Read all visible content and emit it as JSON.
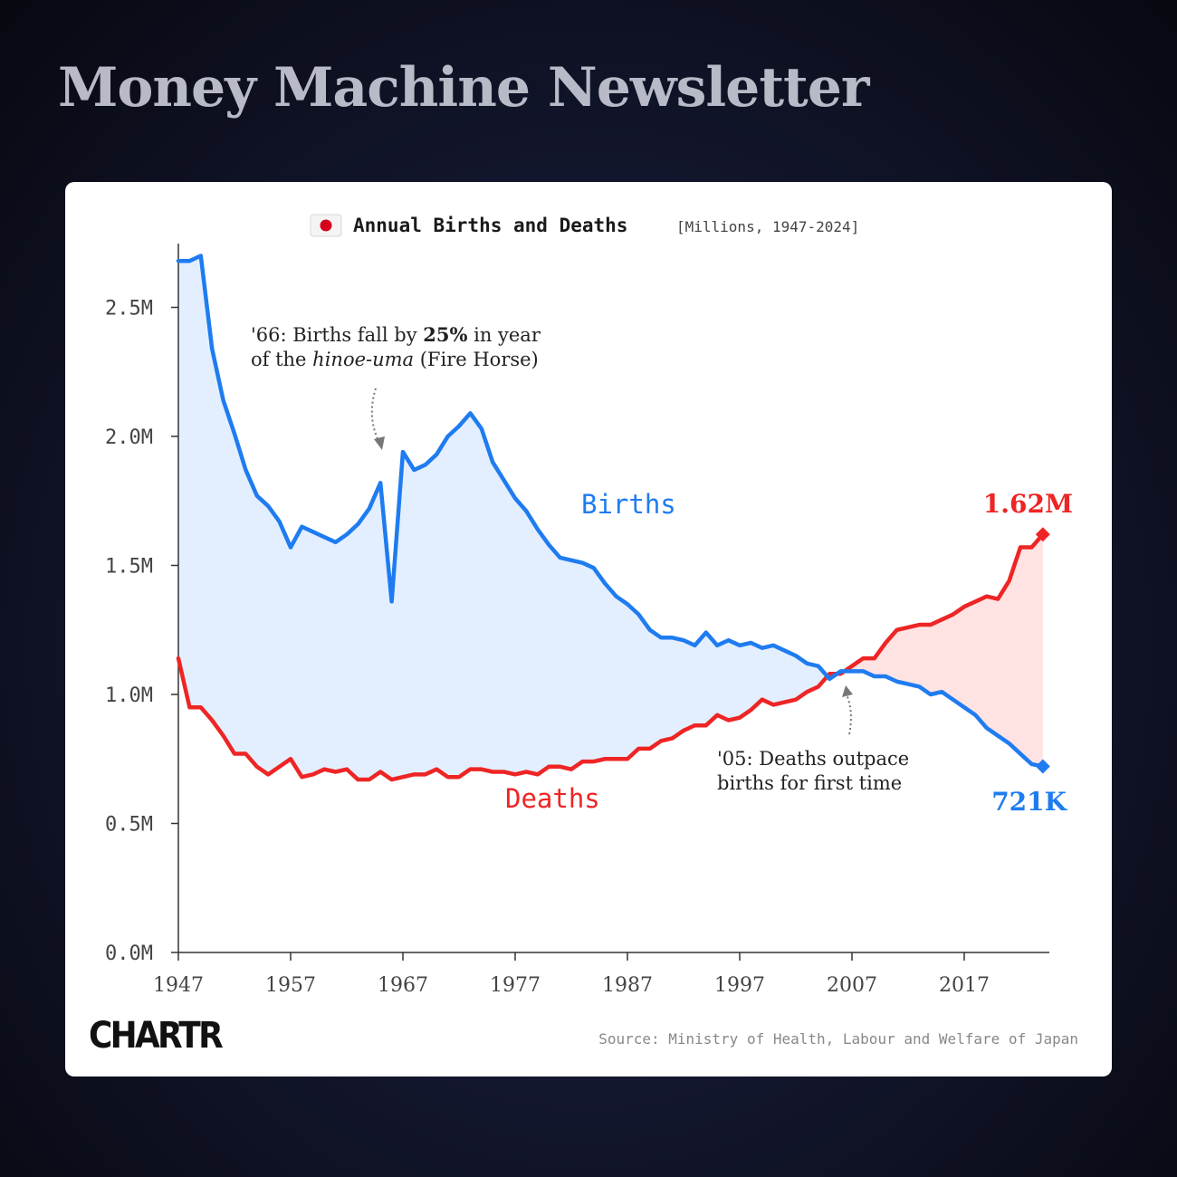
{
  "header": {
    "title": "Money Machine Newsletter"
  },
  "colors": {
    "births": "#1f7cf0",
    "deaths": "#ee2525",
    "births_fill": "#e3efff",
    "deaths_fill": "#ffe3e3",
    "axis": "#333333",
    "tick_text": "#444444"
  },
  "chart_data": {
    "type": "line",
    "title": "Annual Births and Deaths",
    "subtitle": "[Millions, 1947-2024]",
    "flag_icon": "japan-flag-icon",
    "xlim": [
      1947,
      2025
    ],
    "ylim": [
      0,
      2.75
    ],
    "x_ticks": [
      {
        "value": 1947,
        "label": "1947"
      },
      {
        "value": 1957,
        "label": "1957"
      },
      {
        "value": 1967,
        "label": "1967"
      },
      {
        "value": 1977,
        "label": "1977"
      },
      {
        "value": 1987,
        "label": "1987"
      },
      {
        "value": 1997,
        "label": "1997"
      },
      {
        "value": 2007,
        "label": "2007"
      },
      {
        "value": 2017,
        "label": "2017"
      }
    ],
    "y_ticks": [
      {
        "value": 0,
        "label": "0.0M"
      },
      {
        "value": 0.5,
        "label": "0.5M"
      },
      {
        "value": 1.0,
        "label": "1.0M"
      },
      {
        "value": 1.5,
        "label": "1.5M"
      },
      {
        "value": 2.0,
        "label": "2.0M"
      },
      {
        "value": 2.5,
        "label": "2.5M"
      }
    ],
    "x": [
      1947,
      1948,
      1949,
      1950,
      1951,
      1952,
      1953,
      1954,
      1955,
      1956,
      1957,
      1958,
      1959,
      1960,
      1961,
      1962,
      1963,
      1964,
      1965,
      1966,
      1967,
      1968,
      1969,
      1970,
      1971,
      1972,
      1973,
      1974,
      1975,
      1976,
      1977,
      1978,
      1979,
      1980,
      1981,
      1982,
      1983,
      1984,
      1985,
      1986,
      1987,
      1988,
      1989,
      1990,
      1991,
      1992,
      1993,
      1994,
      1995,
      1996,
      1997,
      1998,
      1999,
      2000,
      2001,
      2002,
      2003,
      2004,
      2005,
      2006,
      2007,
      2008,
      2009,
      2010,
      2011,
      2012,
      2013,
      2014,
      2015,
      2016,
      2017,
      2018,
      2019,
      2020,
      2021,
      2022,
      2023,
      2024
    ],
    "series": [
      {
        "name": "Births",
        "values": [
          2.68,
          2.68,
          2.7,
          2.34,
          2.14,
          2.01,
          1.87,
          1.77,
          1.73,
          1.67,
          1.57,
          1.65,
          1.63,
          1.61,
          1.59,
          1.62,
          1.66,
          1.72,
          1.82,
          1.36,
          1.94,
          1.87,
          1.89,
          1.93,
          2.0,
          2.04,
          2.09,
          2.03,
          1.9,
          1.83,
          1.76,
          1.71,
          1.64,
          1.58,
          1.53,
          1.52,
          1.51,
          1.49,
          1.43,
          1.38,
          1.35,
          1.31,
          1.25,
          1.22,
          1.22,
          1.21,
          1.19,
          1.24,
          1.19,
          1.21,
          1.19,
          1.2,
          1.18,
          1.19,
          1.17,
          1.15,
          1.12,
          1.11,
          1.06,
          1.09,
          1.09,
          1.09,
          1.07,
          1.07,
          1.05,
          1.04,
          1.03,
          1.0,
          1.01,
          0.98,
          0.95,
          0.92,
          0.87,
          0.84,
          0.81,
          0.77,
          0.73,
          0.721
        ],
        "end_label": "721K"
      },
      {
        "name": "Deaths",
        "values": [
          1.14,
          0.95,
          0.95,
          0.9,
          0.84,
          0.77,
          0.77,
          0.72,
          0.69,
          0.72,
          0.75,
          0.68,
          0.69,
          0.71,
          0.7,
          0.71,
          0.67,
          0.67,
          0.7,
          0.67,
          0.68,
          0.69,
          0.69,
          0.71,
          0.68,
          0.68,
          0.71,
          0.71,
          0.7,
          0.7,
          0.69,
          0.7,
          0.69,
          0.72,
          0.72,
          0.71,
          0.74,
          0.74,
          0.75,
          0.75,
          0.75,
          0.79,
          0.79,
          0.82,
          0.83,
          0.86,
          0.88,
          0.88,
          0.92,
          0.9,
          0.91,
          0.94,
          0.98,
          0.96,
          0.97,
          0.98,
          1.01,
          1.03,
          1.08,
          1.08,
          1.11,
          1.14,
          1.14,
          1.2,
          1.25,
          1.26,
          1.27,
          1.27,
          1.29,
          1.31,
          1.34,
          1.36,
          1.38,
          1.37,
          1.44,
          1.57,
          1.57,
          1.62
        ],
        "end_label": "1.62M"
      }
    ],
    "annotations": [
      {
        "id": "fire-horse",
        "line1_pre": "'66: Births fall by ",
        "line1_bold": "25%",
        "line1_post": " in year",
        "line2_pre": "of the ",
        "line2_italic": "hinoe-uma",
        "line2_post": " (Fire Horse)"
      },
      {
        "id": "deaths-outpace",
        "line1": "'05: Deaths outpace",
        "line2": "births for first time"
      }
    ],
    "source": "Source: Ministry of Health, Labour and Welfare of Japan",
    "logo_text": "CHARTR"
  }
}
